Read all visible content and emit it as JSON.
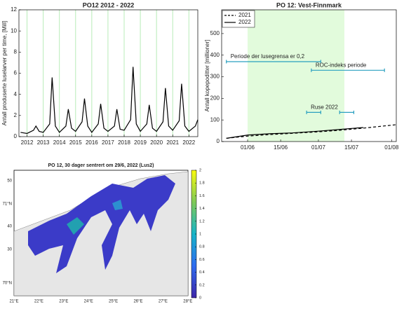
{
  "chart_data": [
    {
      "type": "line",
      "title": "PO12 2012 - 2022",
      "ylabel": "Antall produserte luselarver per time, [Mill]",
      "xlim": [
        2011.5,
        2022.55
      ],
      "xticks": [
        2012,
        2013,
        2014,
        2015,
        2016,
        2017,
        2018,
        2019,
        2020,
        2021,
        2022
      ],
      "ylim": [
        0,
        12
      ],
      "yticks": [
        0,
        2,
        4,
        6,
        8,
        10,
        12
      ],
      "grid": true,
      "grid_color": "#b8ecb8",
      "series": [
        {
          "color": "#000000",
          "x": [
            2011.6,
            2012.0,
            2012.4,
            2012.55,
            2012.75,
            2013.0,
            2013.4,
            2013.55,
            2013.75,
            2014.0,
            2014.4,
            2014.55,
            2014.75,
            2015.0,
            2015.4,
            2015.55,
            2015.75,
            2016.0,
            2016.4,
            2016.55,
            2016.75,
            2017.0,
            2017.4,
            2017.55,
            2017.75,
            2018.0,
            2018.4,
            2018.55,
            2018.75,
            2019.0,
            2019.4,
            2019.55,
            2019.75,
            2020.0,
            2020.4,
            2020.55,
            2020.75,
            2021.0,
            2021.4,
            2021.55,
            2021.75,
            2022.0,
            2022.4,
            2022.55
          ],
          "values": [
            0.4,
            0.3,
            0.6,
            1.0,
            0.5,
            0.4,
            1.2,
            5.6,
            1.0,
            0.4,
            1.0,
            2.6,
            0.8,
            0.5,
            1.4,
            3.6,
            1.0,
            0.4,
            1.2,
            3.1,
            0.8,
            0.5,
            1.0,
            2.6,
            0.7,
            0.6,
            1.6,
            6.6,
            1.2,
            0.5,
            1.2,
            3.0,
            0.8,
            0.5,
            1.4,
            4.6,
            1.0,
            0.6,
            1.5,
            5.0,
            1.0,
            0.5,
            1.0,
            1.6
          ]
        }
      ]
    },
    {
      "type": "line",
      "title": "PO 12: Vest-Finnmark",
      "ylabel": "Antall kopepoditter [millioner]",
      "xlim": [
        "21/05",
        "03/08"
      ],
      "xticks": [
        "01/06",
        "15/06",
        "01/07",
        "15/07",
        "01/08"
      ],
      "ylim": [
        0,
        610
      ],
      "yticks": [
        0,
        100,
        200,
        300,
        400,
        500
      ],
      "legend": "upper left",
      "shade": [
        "01/06",
        "12/07"
      ],
      "shade_color": "#e2fbdc",
      "series": [
        {
          "name": "2021",
          "color": "#000000",
          "dash": true,
          "x": [
            "23/05",
            "01/06",
            "10/06",
            "20/06",
            "01/07",
            "10/07",
            "20/07",
            "03/08"
          ],
          "values": [
            15,
            25,
            32,
            38,
            45,
            52,
            62,
            78
          ]
        },
        {
          "name": "2022",
          "color": "#000000",
          "dash": false,
          "x": [
            "23/05",
            "01/06",
            "10/06",
            "20/06",
            "01/07",
            "10/07",
            "20/07"
          ],
          "values": [
            15,
            30,
            36,
            40,
            48,
            56,
            65
          ]
        }
      ],
      "annotations": [
        {
          "text": "Periode der lusegrensa er 0,2",
          "y": 370,
          "segments": [
            [
              "23/05",
              "02/07"
            ]
          ]
        },
        {
          "text": "ROC-indeks periode",
          "y": 330,
          "segments": [
            [
              "28/06",
              "29/07"
            ]
          ]
        },
        {
          "text": "Ruse 2022",
          "y": 135,
          "segments": [
            [
              "26/06",
              "02/07"
            ],
            [
              "10/07",
              "16/07"
            ]
          ]
        }
      ],
      "annotation_color": "#2aa0c0"
    },
    {
      "type": "map",
      "title": "PO 12, 30 dager sentrert om 29/6, 2022 (Lus2)",
      "lon_labels": [
        "21°E",
        "22°E",
        "23°E",
        "24°E",
        "25°E",
        "26°E",
        "27°E",
        "28°E"
      ],
      "lat_labels": [
        "50",
        "71°N",
        "40",
        "30",
        "70°N"
      ],
      "colorbar": {
        "lim": [
          0,
          2
        ],
        "ticks": [
          0,
          0.2,
          0.4,
          0.6,
          0.8,
          1,
          1.2,
          1.4,
          1.6,
          1.8,
          2
        ]
      }
    }
  ]
}
